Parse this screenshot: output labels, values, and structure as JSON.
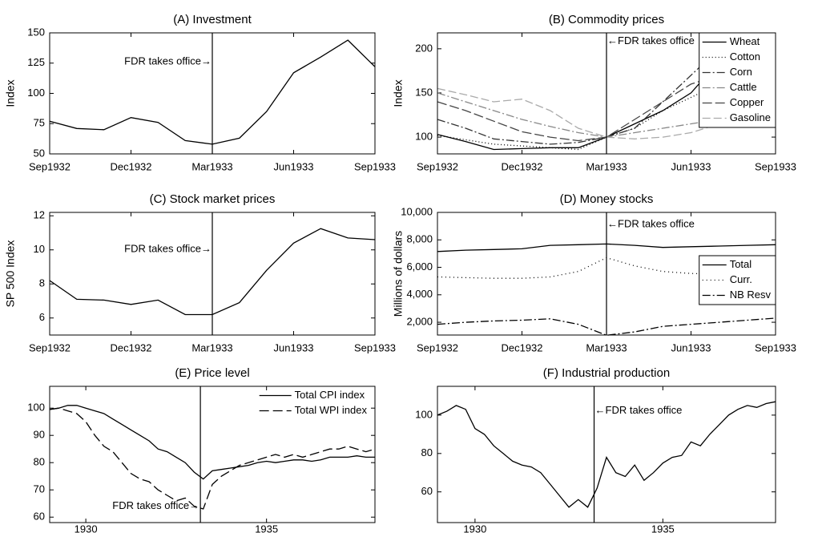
{
  "chart_data": [
    {
      "type": "line",
      "title": "(A) Investment",
      "ylabel": "Index",
      "categories": [
        "Sep1932",
        null,
        null,
        "Dec1932",
        null,
        null,
        "Mar1933",
        null,
        null,
        "Jun1933",
        null,
        null,
        "Sep1933"
      ],
      "values": [
        77,
        71,
        70,
        80,
        76,
        61,
        58,
        63,
        85,
        117,
        130,
        144,
        122
      ],
      "color": "#000000",
      "ylim": [
        50,
        150
      ],
      "yticks": [
        50,
        75,
        100,
        125,
        150
      ],
      "vline_x": "Mar1933",
      "annotation": "FDR takes office→"
    },
    {
      "type": "line",
      "title": "(B) Commodity prices",
      "ylabel": "Index",
      "categories": [
        "Sep1932",
        null,
        null,
        "Dec1932",
        null,
        null,
        "Mar1933",
        null,
        null,
        "Jun1933",
        null,
        null,
        "Sep1933"
      ],
      "series": [
        {
          "name": "Wheat",
          "color": "#000000",
          "dash": "none",
          "values": [
            103,
            95,
            86,
            87,
            88,
            88,
            100,
            115,
            130,
            150,
            186,
            178,
            175
          ]
        },
        {
          "name": "Cotton",
          "color": "#000000",
          "dash": "1,3",
          "values": [
            102,
            97,
            92,
            90,
            88,
            86,
            100,
            110,
            130,
            145,
            160,
            150,
            145
          ]
        },
        {
          "name": "Corn",
          "color": "#333333",
          "dash": "10,3,2,3",
          "values": [
            120,
            110,
            98,
            95,
            92,
            94,
            100,
            110,
            140,
            170,
            200,
            180,
            175
          ]
        },
        {
          "name": "Cattle",
          "color": "#888888",
          "dash": "10,3,2,3",
          "values": [
            150,
            140,
            130,
            120,
            112,
            105,
            100,
            105,
            110,
            115,
            120,
            118,
            115
          ]
        },
        {
          "name": "Copper",
          "color": "#444444",
          "dash": "12,4",
          "values": [
            140,
            130,
            118,
            106,
            100,
            96,
            100,
            120,
            140,
            160,
            170,
            165,
            160
          ]
        },
        {
          "name": "Gasoline",
          "color": "#aaaaaa",
          "dash": "10,4",
          "values": [
            155,
            148,
            140,
            143,
            130,
            110,
            100,
            98,
            100,
            105,
            115,
            115,
            115
          ]
        }
      ],
      "ylim": [
        81,
        218
      ],
      "yticks": [
        100,
        150,
        200
      ],
      "legend": "upper right",
      "legend_frame": true,
      "vline_x": "Mar1933",
      "annotation": "←FDR takes office"
    },
    {
      "type": "line",
      "title": "(C) Stock market prices",
      "ylabel": "SP 500 Index",
      "categories": [
        "Sep1932",
        null,
        null,
        "Dec1932",
        null,
        null,
        "Mar1933",
        null,
        null,
        "Jun1933",
        null,
        null,
        "Sep1933"
      ],
      "values": [
        8.2,
        7.1,
        7.05,
        6.8,
        7.05,
        6.2,
        6.2,
        6.9,
        8.8,
        10.4,
        11.25,
        10.7,
        10.6
      ],
      "color": "#000000",
      "ylim": [
        5,
        12.2
      ],
      "yticks": [
        6,
        8,
        10,
        12
      ],
      "vline_x": "Mar1933",
      "annotation": "FDR takes office→"
    },
    {
      "type": "line",
      "title": "(D) Money stocks",
      "ylabel": "Millions of dollars",
      "categories": [
        "Sep1932",
        null,
        null,
        "Dec1932",
        null,
        null,
        "Mar1933",
        null,
        null,
        "Jun1933",
        null,
        null,
        "Sep1933"
      ],
      "series": [
        {
          "name": "Total",
          "color": "#000000",
          "dash": "none",
          "values": [
            7150,
            7250,
            7300,
            7350,
            7600,
            7650,
            7700,
            7600,
            7450,
            7500,
            7550,
            7600,
            7650
          ]
        },
        {
          "name": "Curr.",
          "color": "#000000",
          "dash": "1,4",
          "values": [
            5300,
            5250,
            5200,
            5200,
            5300,
            5700,
            6700,
            6100,
            5700,
            5550,
            5500,
            5350,
            5300
          ]
        },
        {
          "name": "NB Resv",
          "color": "#000000",
          "dash": "10,3,2,3",
          "values": [
            1850,
            2000,
            2100,
            2150,
            2250,
            1850,
            1050,
            1300,
            1700,
            1850,
            2000,
            2150,
            2300
          ]
        }
      ],
      "ylim": [
        1070,
        10000
      ],
      "yticks": [
        {
          "value": 2000,
          "label": "2,000"
        },
        {
          "value": 4000,
          "label": "4,000"
        },
        {
          "value": 6000,
          "label": "6,000"
        },
        {
          "value": 8000,
          "label": "8,000"
        },
        {
          "value": 10000,
          "label": "10,000"
        }
      ],
      "legend": "right",
      "legend_frame": true,
      "vline_x": "Mar1933",
      "annotation": "←FDR takes office"
    },
    {
      "type": "line",
      "title": "(E) Price level",
      "x": [
        1929,
        1929.25,
        1929.5,
        1929.75,
        1930,
        1930.25,
        1930.5,
        1930.75,
        1931,
        1931.25,
        1931.5,
        1931.75,
        1932,
        1932.25,
        1932.5,
        1932.75,
        1933,
        1933.25,
        1933.5,
        1933.75,
        1934,
        1934.25,
        1934.5,
        1934.75,
        1935,
        1935.25,
        1935.5,
        1935.75,
        1936,
        1936.25,
        1936.5,
        1936.75,
        1937,
        1937.25,
        1937.5,
        1937.75,
        1938
      ],
      "series": [
        {
          "name": "Total CPI index",
          "color": "#000000",
          "dash": "none",
          "values": [
            99.5,
            100,
            101,
            101,
            100,
            99,
            98,
            96,
            94,
            92,
            90,
            88,
            85,
            84,
            82,
            80,
            76.5,
            74,
            77,
            77.5,
            78,
            78.5,
            79,
            80,
            80.5,
            80,
            80.5,
            81,
            81,
            80.5,
            81,
            82,
            82,
            82,
            82.5,
            82,
            82
          ]
        },
        {
          "name": "Total WPI index",
          "color": "#000000",
          "dash": "12,5",
          "values": [
            99.5,
            100,
            99,
            98,
            95,
            90,
            86,
            84,
            80,
            76,
            74,
            73,
            70,
            68,
            66,
            67,
            64,
            63,
            72,
            75,
            77,
            79,
            80,
            81,
            82,
            83,
            82,
            83,
            82,
            83,
            84,
            85,
            85,
            86,
            85,
            84,
            85
          ]
        }
      ],
      "xlim": [
        1929,
        1938
      ],
      "xticks": [
        1930,
        1935
      ],
      "ylim": [
        58,
        108
      ],
      "yticks": [
        60,
        70,
        80,
        90,
        100
      ],
      "legend": "upper right",
      "legend_frame": false,
      "vline_x": 1933.17,
      "annotation": "FDR takes office→"
    },
    {
      "type": "line",
      "title": "(F) Industrial production",
      "x": [
        1929,
        1929.25,
        1929.5,
        1929.75,
        1930,
        1930.25,
        1930.5,
        1930.75,
        1931,
        1931.25,
        1931.5,
        1931.75,
        1932,
        1932.25,
        1932.5,
        1932.75,
        1933,
        1933.25,
        1933.5,
        1933.75,
        1934,
        1934.25,
        1934.5,
        1934.75,
        1935,
        1935.25,
        1935.5,
        1935.75,
        1936,
        1936.25,
        1936.5,
        1936.75,
        1937,
        1937.25,
        1937.5,
        1937.75,
        1938
      ],
      "values": [
        100,
        102,
        105,
        103,
        93,
        90,
        84,
        80,
        76,
        74,
        73,
        70,
        64,
        58,
        52,
        56,
        52,
        62,
        78,
        70,
        68,
        74,
        66,
        70,
        75,
        78,
        79,
        86,
        84,
        90,
        95,
        100,
        103,
        105,
        104,
        106,
        107
      ],
      "color": "#000000",
      "xlim": [
        1929,
        1938
      ],
      "xticks": [
        1930,
        1935
      ],
      "ylim": [
        44,
        115
      ],
      "yticks": [
        60,
        80,
        100
      ],
      "vline_x": 1933.17,
      "annotation": "←FDR takes office"
    }
  ]
}
